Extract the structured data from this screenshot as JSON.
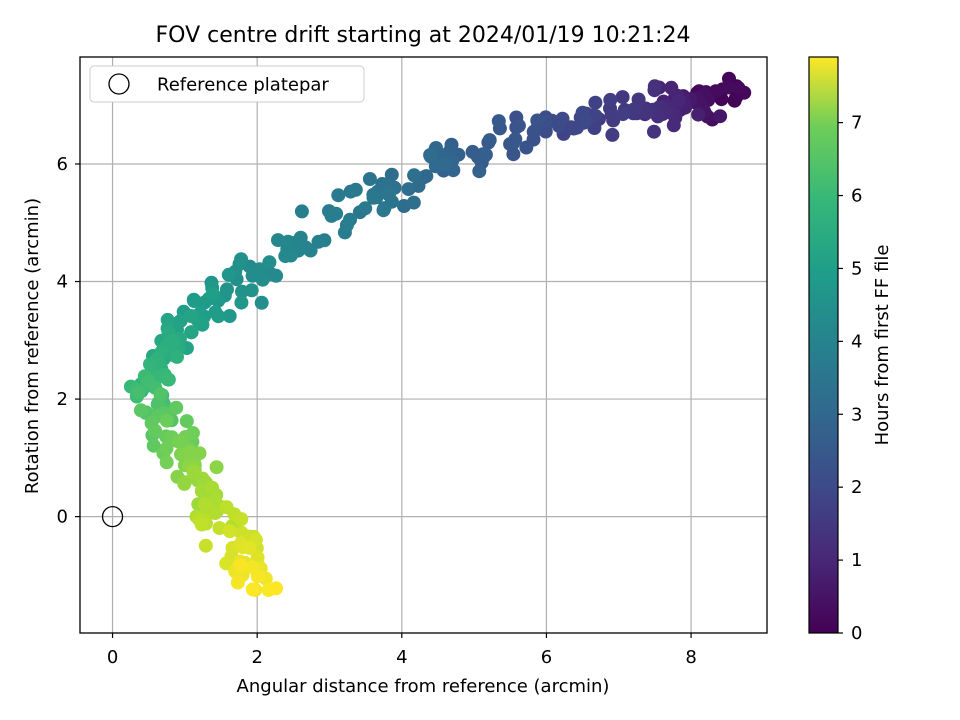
{
  "chart_data": {
    "type": "scatter",
    "title": "FOV centre drift starting at 2024/01/19 10:21:24",
    "xlabel": "Angular distance from reference (arcmin)",
    "ylabel": "Rotation from reference (arcmin)",
    "xlim": [
      -0.45,
      9.05
    ],
    "ylim": [
      -1.98,
      7.82
    ],
    "xticks": [
      0,
      2,
      4,
      6,
      8
    ],
    "yticks": [
      0,
      2,
      4,
      6
    ],
    "grid": true,
    "legend": {
      "placement": "top-left",
      "entries": [
        "Reference platepar"
      ]
    },
    "reference_point": {
      "x": 0,
      "y": 0,
      "label": "Reference platepar"
    },
    "colorbar": {
      "label": "Hours from first FF file",
      "min": 0,
      "max": 7.9,
      "ticks": [
        0,
        1,
        2,
        3,
        4,
        5,
        6,
        7
      ],
      "colormap": "viridis"
    },
    "path_keypoints": [
      {
        "x": 8.6,
        "y": 7.2,
        "t": 0.0
      },
      {
        "x": 7.9,
        "y": 7.0,
        "t": 0.6
      },
      {
        "x": 7.3,
        "y": 6.95,
        "t": 1.2
      },
      {
        "x": 6.4,
        "y": 6.75,
        "t": 1.7
      },
      {
        "x": 5.8,
        "y": 6.5,
        "t": 2.0
      },
      {
        "x": 5.1,
        "y": 6.35,
        "t": 2.3
      },
      {
        "x": 4.4,
        "y": 5.9,
        "t": 2.7
      },
      {
        "x": 3.6,
        "y": 5.35,
        "t": 3.1
      },
      {
        "x": 2.9,
        "y": 4.9,
        "t": 3.4
      },
      {
        "x": 2.3,
        "y": 4.4,
        "t": 3.7
      },
      {
        "x": 1.75,
        "y": 3.95,
        "t": 4.0
      },
      {
        "x": 1.3,
        "y": 3.6,
        "t": 4.3
      },
      {
        "x": 0.9,
        "y": 3.1,
        "t": 4.7
      },
      {
        "x": 0.55,
        "y": 2.5,
        "t": 5.1
      },
      {
        "x": 0.5,
        "y": 2.0,
        "t": 5.5
      },
      {
        "x": 0.75,
        "y": 1.5,
        "t": 6.0
      },
      {
        "x": 1.05,
        "y": 0.9,
        "t": 6.4
      },
      {
        "x": 1.35,
        "y": 0.4,
        "t": 6.8
      },
      {
        "x": 1.6,
        "y": -0.2,
        "t": 7.2
      },
      {
        "x": 1.9,
        "y": -0.8,
        "t": 7.6
      },
      {
        "x": 1.95,
        "y": -1.2,
        "t": 7.9
      }
    ],
    "point_count": 380
  }
}
